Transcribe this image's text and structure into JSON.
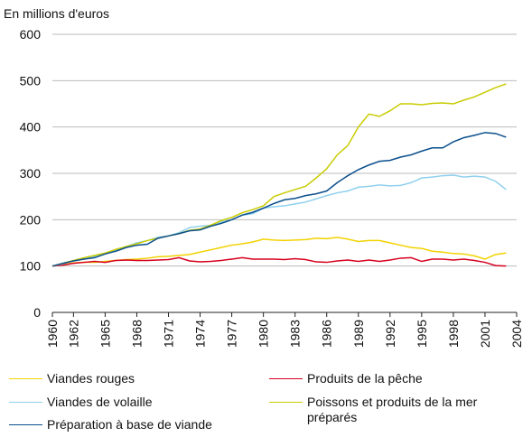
{
  "chart_data": {
    "type": "line",
    "y_label": "En millions d'euros",
    "xlim": [
      1960,
      2004
    ],
    "xticks": [
      1960,
      1962,
      1965,
      1968,
      1971,
      1974,
      1977,
      1980,
      1983,
      1986,
      1989,
      1992,
      1995,
      1998,
      2001,
      2004
    ],
    "ylim": [
      0,
      600
    ],
    "yticks": [
      0,
      100,
      200,
      300,
      400,
      500,
      600
    ],
    "grid": true,
    "x": [
      1960,
      1961,
      1962,
      1963,
      1964,
      1965,
      1966,
      1967,
      1968,
      1969,
      1970,
      1971,
      1972,
      1973,
      1974,
      1975,
      1976,
      1977,
      1978,
      1979,
      1980,
      1981,
      1982,
      1983,
      1984,
      1985,
      1986,
      1987,
      1988,
      1989,
      1990,
      1991,
      1992,
      1993,
      1994,
      1995,
      1996,
      1997,
      1998,
      1999,
      2000,
      2001,
      2002,
      2003
    ],
    "series": [
      {
        "name": "Viandes rouges",
        "color": "#f2d200",
        "values": [
          100,
          103,
          107,
          108,
          108,
          110,
          112,
          114,
          115,
          117,
          120,
          121,
          123,
          125,
          130,
          135,
          140,
          145,
          148,
          152,
          158,
          156,
          155,
          156,
          157,
          160,
          159,
          162,
          158,
          153,
          155,
          155,
          150,
          145,
          140,
          138,
          132,
          130,
          127,
          126,
          122,
          115,
          125,
          128
        ]
      },
      {
        "name": "Produits de la pêche",
        "color": "#d7001f",
        "values": [
          100,
          102,
          106,
          108,
          110,
          108,
          112,
          113,
          112,
          112,
          113,
          114,
          118,
          111,
          109,
          110,
          112,
          115,
          118,
          115,
          115,
          115,
          114,
          116,
          114,
          109,
          108,
          111,
          113,
          110,
          113,
          110,
          113,
          117,
          118,
          110,
          115,
          115,
          113,
          115,
          112,
          108,
          101,
          100
        ]
      },
      {
        "name": "Viandes de volaille",
        "color": "#8fd0ee",
        "values": [
          100,
          105,
          112,
          116,
          120,
          128,
          135,
          142,
          150,
          155,
          162,
          165,
          172,
          183,
          186,
          188,
          195,
          200,
          210,
          213,
          225,
          228,
          230,
          234,
          238,
          245,
          252,
          258,
          262,
          270,
          272,
          275,
          273,
          274,
          280,
          290,
          292,
          295,
          296,
          292,
          294,
          292,
          283,
          265
        ]
      },
      {
        "name": "Poissons et produits de la mer préparés",
        "color": "#c8cc00",
        "values": [
          100,
          106,
          112,
          118,
          123,
          128,
          136,
          142,
          148,
          155,
          160,
          165,
          170,
          177,
          180,
          188,
          198,
          205,
          215,
          222,
          230,
          250,
          258,
          265,
          272,
          290,
          310,
          340,
          360,
          400,
          428,
          423,
          435,
          450,
          450,
          448,
          451,
          452,
          450,
          458,
          465,
          475,
          485,
          493
        ]
      },
      {
        "name": "Préparation à base de viande",
        "color": "#0b4f8c",
        "values": [
          100,
          106,
          111,
          115,
          118,
          126,
          132,
          140,
          145,
          147,
          160,
          165,
          170,
          176,
          178,
          186,
          192,
          200,
          210,
          216,
          225,
          235,
          243,
          246,
          252,
          256,
          262,
          280,
          295,
          308,
          318,
          326,
          328,
          335,
          340,
          348,
          355,
          355,
          368,
          377,
          382,
          388,
          386,
          378
        ]
      }
    ]
  }
}
